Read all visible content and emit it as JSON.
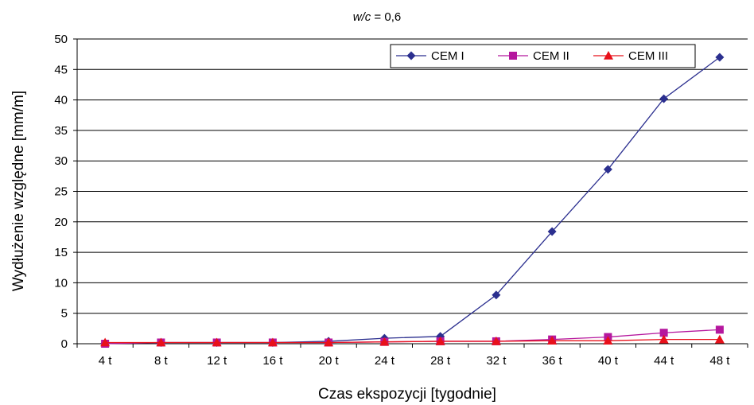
{
  "chart_data": {
    "type": "line",
    "title_italic": "w/c",
    "title_rest": " = 0,6",
    "xlabel": "Czas ekspozycji [tygodnie]",
    "ylabel": "Wydłużenie względne [mm/m]",
    "ylim": [
      0,
      50
    ],
    "yticks": [
      "0",
      "5",
      "10",
      "15",
      "20",
      "25",
      "30",
      "35",
      "40",
      "45",
      "50"
    ],
    "ytick_values": [
      0,
      5,
      10,
      15,
      20,
      25,
      30,
      35,
      40,
      45,
      50
    ],
    "grid": true,
    "legend_position": "top-right",
    "categories": [
      "4 t",
      "8 t",
      "12 t",
      "16 t",
      "20 t",
      "24 t",
      "28 t",
      "32 t",
      "36 t",
      "40 t",
      "44 t",
      "48 t"
    ],
    "series": [
      {
        "name": "CEM I",
        "color": "#2B2F8F",
        "marker": "diamond",
        "values": [
          0.1,
          0.2,
          0.2,
          0.2,
          0.4,
          0.9,
          1.2,
          8.0,
          18.4,
          28.6,
          40.2,
          47.0
        ]
      },
      {
        "name": "CEM II",
        "color": "#B5179E",
        "marker": "square",
        "values": [
          0.0,
          0.2,
          0.2,
          0.2,
          0.2,
          0.3,
          0.4,
          0.4,
          0.7,
          1.1,
          1.8,
          2.3
        ]
      },
      {
        "name": "CEM III",
        "color": "#E8101A",
        "marker": "triangle",
        "values": [
          0.2,
          0.2,
          0.2,
          0.2,
          0.2,
          0.3,
          0.4,
          0.4,
          0.5,
          0.5,
          0.7,
          0.7
        ]
      }
    ]
  }
}
